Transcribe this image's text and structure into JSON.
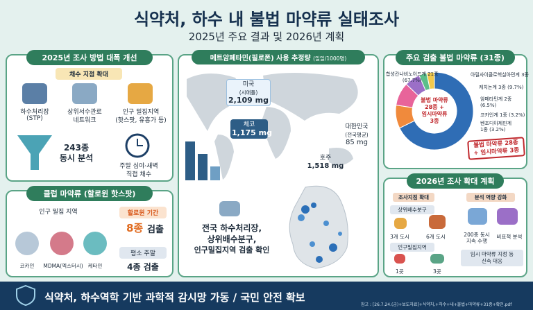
{
  "header": {
    "title": "식약처, 하수 내 불법 마약류 실태조사",
    "subtitle": "2025년 주요 결과 및 2026년 계획"
  },
  "method": {
    "title": "2025년 조사 방법 대폭 개선",
    "subtitle": "채수 지점 확대",
    "sites": [
      {
        "label": "하수처리장",
        "sub": "(STP)"
      },
      {
        "label": "상위서수관로",
        "sub": "네트워크"
      },
      {
        "label": "인구 밀집지역",
        "sub": "(핫스팟, 유흥가 등)"
      }
    ],
    "analysis": [
      "243종",
      "동시 분석"
    ],
    "sampling": [
      "주말 심야·새벽",
      "직접 채수"
    ]
  },
  "club": {
    "title": "클럽 마약류 (할로윈 핫스팟)",
    "area": "인구 밀집 지역",
    "drugs": [
      "코카인",
      "MDMA(엑스터시)",
      "케타민"
    ],
    "halloween": {
      "label": "할로윈 기간",
      "count": "8종",
      "suffix": "검출"
    },
    "weekend": {
      "label": "평소 주말",
      "result": "4종 검출"
    }
  },
  "meth": {
    "title": "메트암페타민(필로폰) 사용 추정량",
    "unit": "(일일/1000명)",
    "countries": [
      {
        "name": "미국",
        "sub": "(시애틀)",
        "value": "2,109 mg"
      },
      {
        "name": "체코",
        "value": "1,175 mg"
      },
      {
        "name": "대한민국",
        "sub": "(전국평균)",
        "value": "85 mg"
      },
      {
        "name": "호주",
        "value": "1,518 mg"
      }
    ],
    "finding": [
      "전국 하수처리장,",
      "상위배수분구,",
      "인구밀집지역 검출 확인"
    ]
  },
  "drugs": {
    "title": "주요 검출 불법 마약류 (31종)",
    "center": [
      "불법 마약류",
      "28종 +",
      "임시마약류",
      "3종"
    ],
    "stamp": [
      "불법 마약류 28종",
      "+ 임시마약류 3종"
    ],
    "segments": [
      {
        "label": "합성칸나비노이드계 21종",
        "pct": "(67.7%)",
        "count": 21,
        "color": "#2f6db5"
      },
      {
        "label": "아릴사이클로헥실아민계 3종",
        "count": 3,
        "color": "#f08a3c"
      },
      {
        "label": "케치논계 3종 (9.7%)",
        "count": 3,
        "color": "#e8649a"
      },
      {
        "label": "암페타민계 2종",
        "pct": "(6.5%)",
        "count": 2,
        "color": "#9b6fc7"
      },
      {
        "label": "코카인계 1종 (3.2%)",
        "count": 1,
        "color": "#5bbf8a"
      },
      {
        "label": "벤조디아제핀계",
        "pct": "1종 (3.2%)",
        "count": 1,
        "color": "#f2c94c"
      }
    ]
  },
  "plan": {
    "title": "2026년 조사 확대 계획",
    "sites": {
      "title": "조사지점 확대",
      "upper": {
        "label": "상위배수분구",
        "from": "3개 도시",
        "to": "6개 도시"
      },
      "dense": {
        "label": "인구밀집지역",
        "from": "1곳",
        "to": "3곳"
      }
    },
    "capacity": {
      "title": "분석 역량 강화",
      "items": [
        [
          "200종 동시",
          "지속 수행"
        ],
        [
          "비표적 분석"
        ]
      ],
      "response": [
        "임시 마약류 지정 등",
        "신속 대응"
      ]
    }
  },
  "footer": {
    "slogan": "식약처, 하수역학 기반 과학적 감시망 가동 / 국민 안전 확보",
    "source": "참고 : [26.7.24.(금)+보도자료]+식약처,+하수+내+불법+마약류+31종+확인.pdf"
  }
}
